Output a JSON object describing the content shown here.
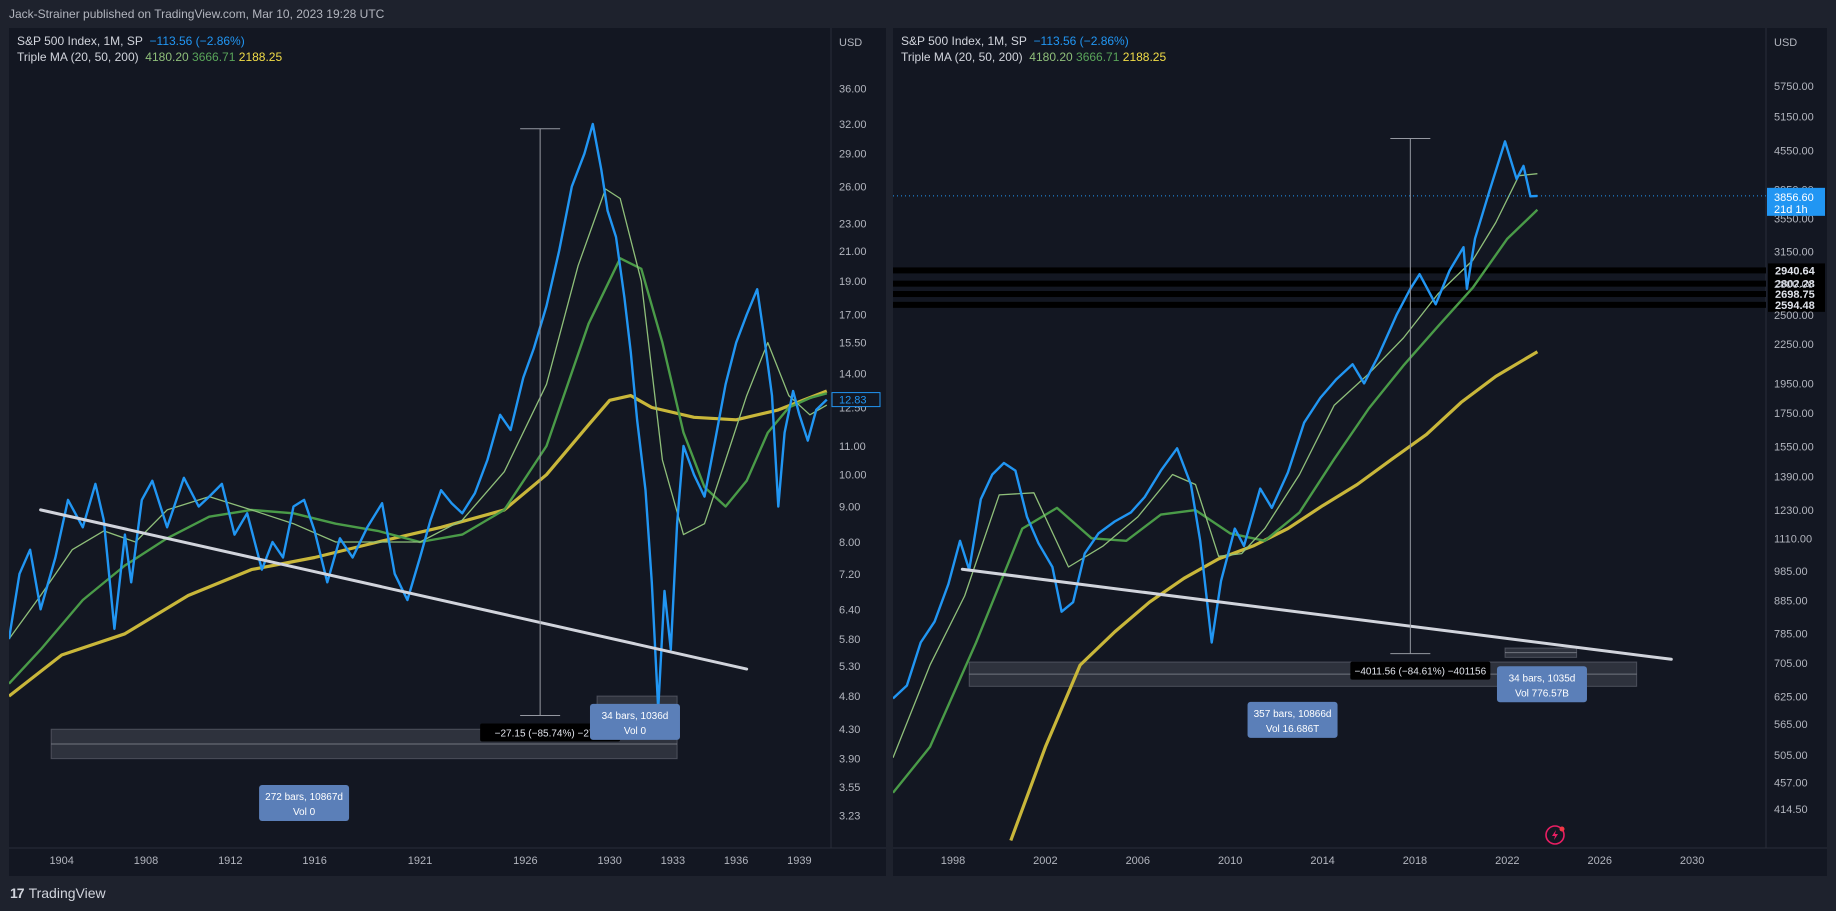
{
  "header": {
    "published_text": "Jack-Strainer published on TradingView.com, Mar 10, 2023 19:28 UTC"
  },
  "footer": {
    "brand": "TradingView",
    "logo_text": "17"
  },
  "colors": {
    "background": "#131722",
    "frame": "#1e222d",
    "price": "#2196f3",
    "ma20": "#8fbf7a",
    "ma50": "#4a9b48",
    "ma200": "#c9b73a",
    "trendline": "#d1d4dc",
    "grid_text": "#b2b5be"
  },
  "chart_data": [
    {
      "type": "line",
      "title": "S&P 500 Index, 1M, SP",
      "change": "−113.56 (−2.86%)",
      "indicator": {
        "name": "Triple MA (20, 50, 200)",
        "values": [
          "4180.20",
          "3666.71",
          "2188.25"
        ]
      },
      "currency": "USD",
      "y_scale": "log",
      "ylim": [
        2.9,
        44
      ],
      "xlim": [
        1901.5,
        1940.5
      ],
      "y_ticks": [
        "36.00",
        "32.00",
        "29.00",
        "26.00",
        "23.00",
        "21.00",
        "19.00",
        "17.00",
        "15.50",
        "14.00",
        "12.50",
        "11.00",
        "10.00",
        "9.00",
        "8.00",
        "7.20",
        "6.40",
        "5.80",
        "5.30",
        "4.80",
        "4.30",
        "3.90",
        "3.55",
        "3.23"
      ],
      "x_ticks": [
        "1904",
        "1908",
        "1912",
        "1916",
        "1921",
        "1926",
        "1930",
        "1933",
        "1936",
        "1939"
      ],
      "x_tick_values": [
        1904,
        1908,
        1912,
        1916,
        1921,
        1926,
        1930,
        1933,
        1936,
        1939
      ],
      "last_price_label": "12.83",
      "series": [
        {
          "key": "price",
          "x": [
            1901.5,
            1902,
            1902.5,
            1903,
            1903.7,
            1904.3,
            1905,
            1905.6,
            1906,
            1906.5,
            1907,
            1907.3,
            1907.8,
            1908.3,
            1909,
            1909.8,
            1910.5,
            1911,
            1911.6,
            1912.2,
            1912.8,
            1913.5,
            1914,
            1914.5,
            1915,
            1915.5,
            1916,
            1916.6,
            1917.2,
            1917.8,
            1918.5,
            1919.2,
            1919.8,
            1920.4,
            1921,
            1921.5,
            1922,
            1922.5,
            1923,
            1923.6,
            1924.2,
            1924.8,
            1925.3,
            1925.9,
            1926.4,
            1927,
            1927.6,
            1928.2,
            1928.8,
            1929.2,
            1929.6,
            1929.9,
            1930.3,
            1930.7,
            1931,
            1931.3,
            1931.7,
            1932,
            1932.3,
            1932.6,
            1932.9,
            1933.2,
            1933.5,
            1934,
            1934.5,
            1935,
            1935.5,
            1936,
            1936.5,
            1937,
            1937.3,
            1937.7,
            1938,
            1938.3,
            1938.7,
            1939,
            1939.4,
            1939.8,
            1940.3
          ],
          "y": [
            5.8,
            7.2,
            7.8,
            6.4,
            7.6,
            9.2,
            8.4,
            9.7,
            8.6,
            6.0,
            8.2,
            7.0,
            9.2,
            9.8,
            8.4,
            9.9,
            9.0,
            9.3,
            9.7,
            8.2,
            8.8,
            7.3,
            8.0,
            7.6,
            9.0,
            9.2,
            8.3,
            7.0,
            8.1,
            7.6,
            8.4,
            9.1,
            7.2,
            6.6,
            7.6,
            8.6,
            9.5,
            9.1,
            8.8,
            9.4,
            10.5,
            12.2,
            11.6,
            13.8,
            15.2,
            17.5,
            21.0,
            26.0,
            29.0,
            32.0,
            27.5,
            24.0,
            22.0,
            18.0,
            15.0,
            12.0,
            9.5,
            7.0,
            4.6,
            6.8,
            5.6,
            8.5,
            11.0,
            10.0,
            9.3,
            11.2,
            13.5,
            15.5,
            17.0,
            18.5,
            16.0,
            13.0,
            9.0,
            11.5,
            13.2,
            12.2,
            11.2,
            12.4,
            12.83
          ]
        },
        {
          "key": "ma20",
          "x": [
            1901.5,
            1903,
            1904.5,
            1906,
            1907.5,
            1909,
            1911,
            1913,
            1915,
            1917,
            1919,
            1921,
            1923,
            1925,
            1927,
            1928.5,
            1929.8,
            1930.5,
            1931.5,
            1932.5,
            1933.5,
            1934.5,
            1935.5,
            1936.5,
            1937.5,
            1938.5,
            1939.5,
            1940.3
          ],
          "y": [
            5.8,
            6.7,
            7.8,
            8.3,
            8.0,
            8.9,
            9.3,
            8.9,
            8.5,
            8.0,
            8.0,
            8.0,
            8.6,
            10.1,
            13.5,
            20.0,
            25.8,
            25.0,
            19.0,
            10.5,
            8.2,
            8.5,
            10.5,
            13.0,
            15.5,
            13.0,
            12.2,
            12.6
          ]
        },
        {
          "key": "ma50",
          "x": [
            1901.5,
            1903,
            1905,
            1907,
            1909,
            1911,
            1913,
            1915,
            1917,
            1919,
            1921,
            1923,
            1925,
            1927,
            1929,
            1930.5,
            1931.5,
            1932.5,
            1933.5,
            1934.5,
            1935.5,
            1936.5,
            1937.5,
            1938.5,
            1939.5,
            1940.3
          ],
          "y": [
            5.0,
            5.6,
            6.6,
            7.4,
            8.1,
            8.7,
            8.9,
            8.8,
            8.5,
            8.3,
            8.0,
            8.2,
            8.9,
            11.0,
            16.5,
            20.5,
            19.8,
            15.5,
            11.5,
            9.6,
            9.0,
            9.8,
            11.5,
            12.5,
            12.9,
            13.1
          ]
        },
        {
          "key": "ma200",
          "x": [
            1901.5,
            1904,
            1907,
            1910,
            1913,
            1916,
            1919,
            1922,
            1925,
            1927,
            1929,
            1930,
            1931,
            1932,
            1934,
            1936,
            1938,
            1940.3
          ],
          "y": [
            4.8,
            5.5,
            5.9,
            6.7,
            7.3,
            7.6,
            8.0,
            8.4,
            8.9,
            10.0,
            11.8,
            12.8,
            13.0,
            12.5,
            12.1,
            12.0,
            12.4,
            13.2
          ]
        }
      ],
      "trendline": {
        "x": [
          1903,
          1936.5
        ],
        "y": [
          8.9,
          5.25
        ]
      },
      "measurements": [
        {
          "x_range": [
            1903.5,
            1933.2
          ],
          "y_range": [
            4.3,
            3.9
          ],
          "label1": "272 bars, 10867d",
          "label2": "Vol 0",
          "label_at": [
            1915.5,
            3.4
          ]
        },
        {
          "x_range": [
            1929.4,
            1933.2
          ],
          "y_range": [
            4.8,
            4.35
          ],
          "label1": "34 bars, 1036d",
          "label2": "Vol 0",
          "label_at": [
            1931.2,
            4.45
          ]
        }
      ],
      "price_change_marker": {
        "x": 1926.7,
        "from": 31.5,
        "to": 4.5,
        "label": "−27.15 (−85.74%) −2715"
      }
    },
    {
      "type": "line",
      "title": "S&P 500 Index, 1M, SP",
      "change": "−113.56 (−2.86%)",
      "indicator": {
        "name": "Triple MA (20, 50, 200)",
        "values": [
          "4180.20",
          "3666.71",
          "2188.25"
        ]
      },
      "currency": "USD",
      "y_scale": "log",
      "ylim": [
        360,
        7100
      ],
      "xlim": [
        1995.4,
        2033.2
      ],
      "y_ticks": [
        "5750.00",
        "5150.00",
        "4550.00",
        "3950.00",
        "3550.00",
        "3150.00",
        "2800.00",
        "2500.00",
        "2250.00",
        "1950.00",
        "1750.00",
        "1550.00",
        "1390.00",
        "1230.00",
        "1110.00",
        "985.00",
        "885.00",
        "785.00",
        "705.00",
        "625.00",
        "565.00",
        "505.00",
        "457.00",
        "414.50"
      ],
      "x_ticks": [
        "1998",
        "2002",
        "2006",
        "2010",
        "2014",
        "2018",
        "2022",
        "2026",
        "2030"
      ],
      "x_tick_values": [
        1998,
        2002,
        2006,
        2010,
        2014,
        2018,
        2022,
        2026,
        2030
      ],
      "last_price_label": "3856.60",
      "last_price_countdown": "21d 1h",
      "horizontal_levels": [
        "2940.64",
        "2802.28",
        "2698.75",
        "2594.48"
      ],
      "series": [
        {
          "key": "price",
          "x": [
            1995.4,
            1996,
            1996.6,
            1997.2,
            1997.8,
            1998.3,
            1998.7,
            1999.2,
            1999.7,
            2000.2,
            2000.7,
            2001.2,
            2001.7,
            2002.3,
            2002.7,
            2003.2,
            2003.7,
            2004.3,
            2005,
            2005.7,
            2006.3,
            2007,
            2007.7,
            2008.3,
            2008.7,
            2009.2,
            2009.6,
            2010.2,
            2010.6,
            2011.3,
            2011.8,
            2012.5,
            2013.2,
            2013.9,
            2014.6,
            2015.3,
            2015.8,
            2016.4,
            2017.2,
            2017.8,
            2018.2,
            2018.9,
            2019.5,
            2020.1,
            2020.25,
            2020.6,
            2021.2,
            2021.9,
            2022.4,
            2022.7,
            2023.0,
            2023.3
          ],
          "y": [
            620,
            650,
            760,
            820,
            940,
            1100,
            990,
            1280,
            1400,
            1460,
            1420,
            1200,
            1090,
            1000,
            850,
            880,
            1050,
            1130,
            1180,
            1220,
            1290,
            1420,
            1540,
            1350,
            1100,
            760,
            950,
            1150,
            1080,
            1330,
            1240,
            1410,
            1690,
            1850,
            1980,
            2090,
            1950,
            2150,
            2500,
            2750,
            2900,
            2600,
            2940,
            3200,
            2750,
            3300,
            3900,
            4700,
            4100,
            4300,
            3850,
            3856
          ]
        },
        {
          "key": "ma20",
          "x": [
            1995.4,
            1997,
            1998.5,
            2000,
            2001.5,
            2003,
            2004.5,
            2006,
            2007.5,
            2008.5,
            2009.5,
            2010.5,
            2011.5,
            2013,
            2014.5,
            2016,
            2017.5,
            2019,
            2020.5,
            2021.5,
            2022.5,
            2023.3
          ],
          "y": [
            500,
            700,
            900,
            1300,
            1310,
            1000,
            1080,
            1200,
            1400,
            1350,
            1040,
            1050,
            1150,
            1400,
            1800,
            2020,
            2300,
            2700,
            3050,
            3500,
            4150,
            4180
          ]
        },
        {
          "key": "ma50",
          "x": [
            1995.4,
            1997,
            1999,
            2001,
            2002.5,
            2004,
            2005.5,
            2007,
            2008.5,
            2010,
            2011.5,
            2013,
            2014.5,
            2016,
            2017.5,
            2019,
            2020.5,
            2022,
            2023.3
          ],
          "y": [
            440,
            520,
            760,
            1150,
            1240,
            1110,
            1100,
            1210,
            1230,
            1130,
            1100,
            1220,
            1480,
            1780,
            2080,
            2400,
            2760,
            3300,
            3666
          ]
        },
        {
          "key": "ma200",
          "x": [
            2000.5,
            2002,
            2003.5,
            2005,
            2006.5,
            2008,
            2009.5,
            2011,
            2012.5,
            2014,
            2015.5,
            2017,
            2018.5,
            2020,
            2021.5,
            2023.3
          ],
          "y": [
            370,
            520,
            700,
            790,
            880,
            960,
            1030,
            1080,
            1150,
            1250,
            1350,
            1480,
            1620,
            1820,
            2000,
            2188
          ]
        }
      ],
      "trendline": {
        "x": [
          1998.4,
          2029.1
        ],
        "y": [
          992,
          715
        ]
      },
      "measurements": [
        {
          "x_range": [
            1998.7,
            2027.6
          ],
          "y_range": [
            708,
            648
          ],
          "label1": "357 bars, 10866d",
          "label2": "Vol 16.686T",
          "label_at": [
            2012.7,
            580
          ]
        },
        {
          "x_range": [
            2021.9,
            2025.0
          ],
          "y_range": [
            745,
            720
          ],
          "label1": "34 bars, 1035d",
          "label2": "Vol 776.57B",
          "label_at": [
            2023.5,
            660
          ]
        }
      ],
      "price_change_marker": {
        "x": 2017.8,
        "from": 4750,
        "to": 730,
        "label": "−4011.56 (−84.61%) −401156"
      }
    }
  ]
}
